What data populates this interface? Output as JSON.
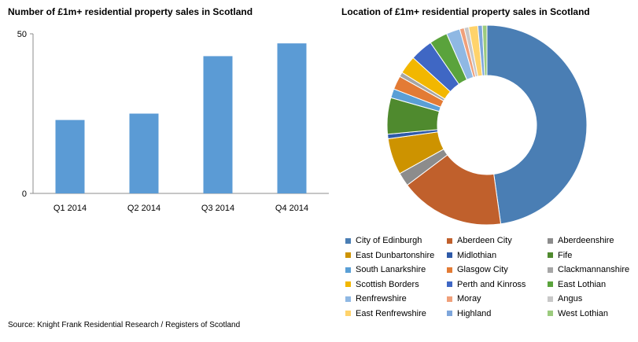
{
  "chart_data": [
    {
      "type": "bar",
      "title": "Number of £1m+ residential property sales in Scotland",
      "categories": [
        "Q1 2014",
        "Q2 2014",
        "Q3 2014",
        "Q4 2014"
      ],
      "values": [
        23,
        25,
        43,
        47
      ],
      "ylim": [
        0,
        50
      ],
      "yticks": [
        "0",
        "50"
      ],
      "xlabel": "",
      "ylabel": "",
      "color": "#5b9bd5",
      "grid": false
    },
    {
      "type": "pie",
      "subtype": "donut",
      "title": "Location of £1m+ residential property sales in Scotland",
      "legend_position": "bottom",
      "labels": [
        "City of Edinburgh",
        "Aberdeen City",
        "Aberdeenshire",
        "East Dunbartonshire",
        "Midlothian",
        "Fife",
        "South Lanarkshire",
        "Glasgow City",
        "Clackmannanshire",
        "Scottish Borders",
        "Perth and Kinross",
        "East Lothian",
        "Renfrewshire",
        "Moray",
        "Angus",
        "East Renfrewshire",
        "Highland",
        "West Lothian"
      ],
      "values": [
        65,
        23,
        3,
        8,
        1,
        8,
        2,
        3,
        1,
        4,
        5,
        4,
        3,
        1,
        1,
        2,
        1,
        1
      ],
      "colors": [
        "#4a7eb4",
        "#c0602c",
        "#8c8c8c",
        "#cd9300",
        "#2e5aa8",
        "#4f8a2e",
        "#5a9fd6",
        "#e37b35",
        "#a6a6a6",
        "#f2b700",
        "#3f67c4",
        "#5aa33c",
        "#8fb8e3",
        "#f0a07a",
        "#c8c8c8",
        "#ffd36b",
        "#7ea6db",
        "#9ccb7e"
      ]
    }
  ],
  "source": "Source: Knight Frank Residential Research / Registers of Scotland"
}
